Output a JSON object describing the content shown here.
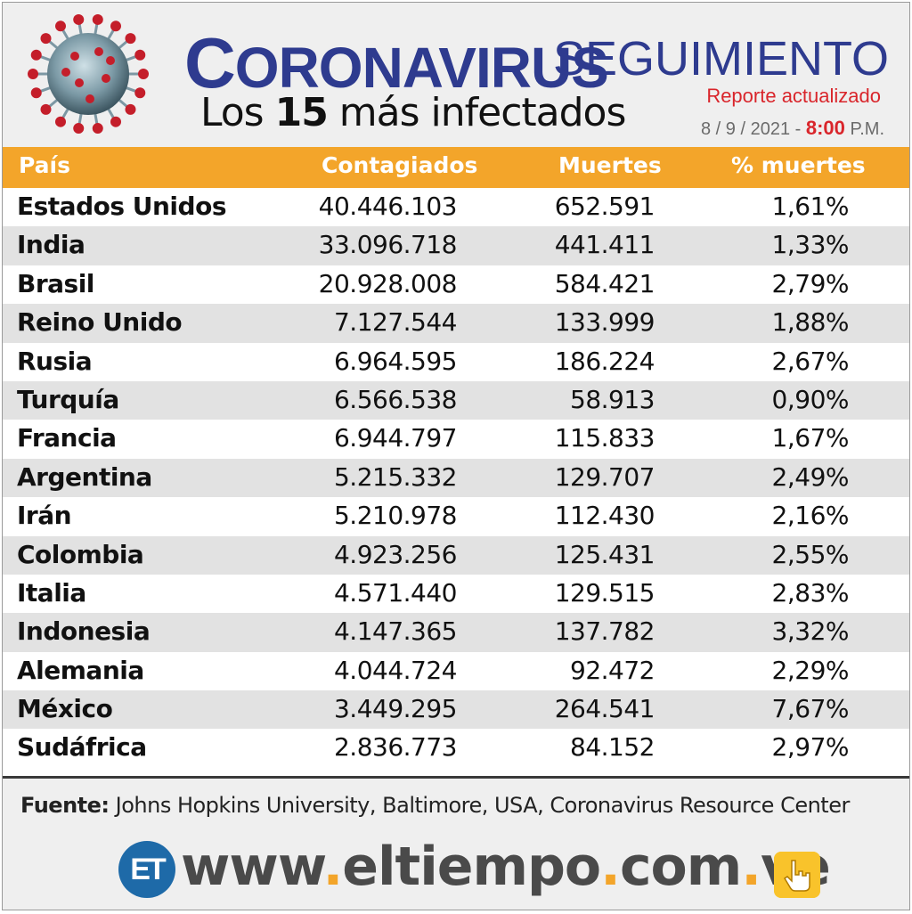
{
  "header": {
    "title_main": "CORONAVIRUS",
    "title_second": "SEGUIMIENTO",
    "subtitle_prefix": "Los ",
    "subtitle_number": "15",
    "subtitle_suffix": " más infectados",
    "report_label": "Reporte actualizado",
    "report_date": "8 / 9 / 2021 - ",
    "report_time": "8:00",
    "report_ampm": " P.M."
  },
  "chart_data": {
    "type": "table",
    "columns": [
      "País",
      "Contagiados",
      "Muertes",
      "% muertes"
    ],
    "rows": [
      {
        "country": "Estados Unidos",
        "cases": "40.446.103",
        "deaths": "652.591",
        "pct": "1,61%"
      },
      {
        "country": "India",
        "cases": "33.096.718",
        "deaths": "441.411",
        "pct": "1,33%"
      },
      {
        "country": "Brasil",
        "cases": "20.928.008",
        "deaths": "584.421",
        "pct": "2,79%"
      },
      {
        "country": "Reino Unido",
        "cases": "7.127.544",
        "deaths": "133.999",
        "pct": "1,88%"
      },
      {
        "country": "Rusia",
        "cases": "6.964.595",
        "deaths": "186.224",
        "pct": "2,67%"
      },
      {
        "country": "Turquía",
        "cases": "6.566.538",
        "deaths": "58.913",
        "pct": "0,90%"
      },
      {
        "country": "Francia",
        "cases": "6.944.797",
        "deaths": "115.833",
        "pct": "1,67%"
      },
      {
        "country": "Argentina",
        "cases": "5.215.332",
        "deaths": "129.707",
        "pct": "2,49%"
      },
      {
        "country": "Irán",
        "cases": "5.210.978",
        "deaths": "112.430",
        "pct": "2,16%"
      },
      {
        "country": "Colombia",
        "cases": "4.923.256",
        "deaths": "125.431",
        "pct": "2,55%"
      },
      {
        "country": "Italia",
        "cases": "4.571.440",
        "deaths": "129.515",
        "pct": "2,83%"
      },
      {
        "country": "Indonesia",
        "cases": "4.147.365",
        "deaths": "137.782",
        "pct": "3,32%"
      },
      {
        "country": "Alemania",
        "cases": "4.044.724",
        "deaths": "92.472",
        "pct": "2,29%"
      },
      {
        "country": "México",
        "cases": "3.449.295",
        "deaths": "264.541",
        "pct": "7,67%"
      },
      {
        "country": "Sudáfrica",
        "cases": "2.836.773",
        "deaths": "84.152",
        "pct": "2,97%"
      }
    ]
  },
  "footer": {
    "source_label": "Fuente:",
    "source_text": " Johns Hopkins University, Baltimore, USA, Coronavirus Resource Center",
    "logo_text": "ET",
    "website_parts": [
      "www",
      ".",
      "eltiempo",
      ".",
      "com",
      ".",
      "ve"
    ]
  },
  "colors": {
    "title_blue": "#2e3b8f",
    "header_orange": "#f3a52a",
    "accent_red": "#d9252b",
    "logo_blue": "#1e6aa8",
    "hand_yellow": "#f9c32b"
  },
  "icons": {
    "virus": "coronavirus-icon",
    "hand": "pointing-hand-icon"
  }
}
